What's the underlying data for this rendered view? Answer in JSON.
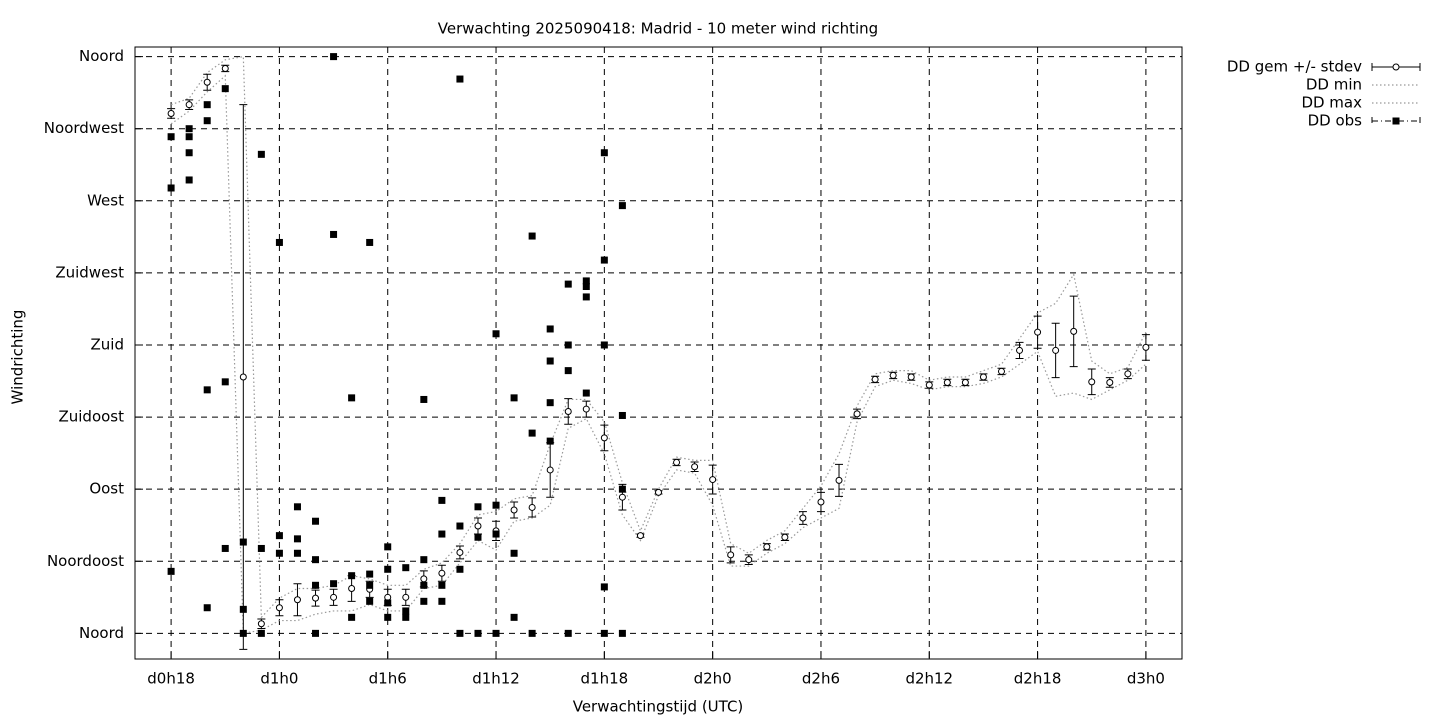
{
  "chart_data": {
    "type": "errorbar",
    "title": "Verwachting 2025090418: Madrid - 10 meter wind richting",
    "xlabel": "Verwachtingstijd (UTC)",
    "ylabel": "Windrichting",
    "xlim": [
      16,
      74
    ],
    "xticks": [
      {
        "value": 18,
        "label": "d0h18"
      },
      {
        "value": 24,
        "label": "d1h0"
      },
      {
        "value": 30,
        "label": "d1h6"
      },
      {
        "value": 36,
        "label": "d1h12"
      },
      {
        "value": 42,
        "label": "d1h18"
      },
      {
        "value": 48,
        "label": "d2h0"
      },
      {
        "value": 54,
        "label": "d2h6"
      },
      {
        "value": 60,
        "label": "d2h12"
      },
      {
        "value": 66,
        "label": "d2h18"
      },
      {
        "value": 72,
        "label": "d3h0"
      }
    ],
    "ylim": [
      -16,
      366
    ],
    "yticks": [
      {
        "value": 0,
        "label": "Noord"
      },
      {
        "value": 45,
        "label": "Noordoost"
      },
      {
        "value": 90,
        "label": "Oost"
      },
      {
        "value": 135,
        "label": "Zuidoost"
      },
      {
        "value": 180,
        "label": "Zuid"
      },
      {
        "value": 225,
        "label": "Zuidwest"
      },
      {
        "value": 270,
        "label": "West"
      },
      {
        "value": 315,
        "label": "Noordwest"
      },
      {
        "value": 360,
        "label": "Noord"
      }
    ],
    "grid": true,
    "legend": "outside-right",
    "x": [
      18,
      19,
      20,
      21,
      22,
      23,
      24,
      25,
      26,
      27,
      28,
      29,
      30,
      31,
      32,
      33,
      34,
      35,
      36,
      37,
      38,
      39,
      40,
      41,
      42,
      43,
      44,
      45,
      46,
      47,
      48,
      49,
      50,
      51,
      52,
      53,
      54,
      55,
      56,
      57,
      58,
      59,
      60,
      61,
      62,
      63,
      64,
      65,
      66,
      67,
      68,
      69,
      70,
      71,
      72
    ],
    "series": [
      {
        "name": "DD gem +/- stdev",
        "kind": "errorbar",
        "color": "#000000",
        "values": [
          324.5,
          330,
          344,
          352.6,
          160,
          6,
          16,
          21,
          22,
          22.5,
          28,
          27.5,
          22.5,
          22.5,
          34,
          37.5,
          50.5,
          67,
          64,
          77,
          78.6,
          102,
          138.5,
          140,
          122,
          85,
          61,
          88,
          106.7,
          104,
          96,
          49,
          46,
          54,
          60,
          72,
          82,
          95.5,
          137,
          158.5,
          161,
          160,
          155,
          156.6,
          156.6,
          160,
          163.5,
          176.6,
          188,
          176.6,
          188.5,
          157,
          156.6,
          162,
          178.5
        ],
        "errors": [
          3,
          3,
          5,
          2,
          170,
          3,
          5,
          10,
          5,
          5,
          8,
          5,
          5,
          5,
          5,
          5,
          4,
          5,
          6,
          5,
          6,
          17,
          8,
          5,
          8,
          8,
          1,
          1,
          2,
          3,
          9,
          5,
          3,
          2,
          2,
          4,
          6,
          10,
          3,
          2,
          2,
          2,
          2,
          2,
          2,
          2,
          2,
          5,
          10,
          17,
          22,
          8,
          3,
          3,
          8
        ]
      },
      {
        "name": "DD min",
        "kind": "dotted",
        "color": "#999999",
        "values": [
          318,
          326,
          338,
          348,
          0,
          2,
          8,
          8,
          12,
          14,
          14,
          18,
          14,
          14,
          28,
          30,
          44,
          58,
          52,
          70,
          72,
          80,
          128,
          134,
          112,
          74,
          58,
          86,
          102,
          100,
          80,
          42,
          42,
          50,
          56,
          66,
          72,
          78,
          132,
          154,
          158,
          156,
          152,
          154,
          154,
          156,
          160,
          168,
          176,
          148,
          150,
          146,
          152,
          158,
          168
        ]
      },
      {
        "name": "DD max",
        "kind": "dotted",
        "color": "#999999",
        "values": [
          330,
          334,
          350,
          358,
          360,
          10,
          22,
          28,
          28,
          30,
          36,
          34,
          30,
          30,
          40,
          44,
          56,
          74,
          76,
          84,
          86,
          118,
          146,
          146,
          132,
          94,
          64,
          90,
          110,
          108,
          108,
          56,
          50,
          58,
          64,
          78,
          92,
          112,
          142,
          162,
          164,
          164,
          158,
          160,
          160,
          164,
          168,
          184,
          200,
          206,
          224,
          170,
          162,
          166,
          188
        ]
      },
      {
        "name": "DD obs",
        "kind": "points",
        "color": "#000000",
        "x": [
          18,
          18,
          18,
          19,
          19,
          19,
          19,
          20,
          20,
          20,
          20,
          21,
          21,
          21,
          22,
          22,
          22,
          23,
          23,
          23,
          24,
          24,
          24,
          25,
          25,
          25,
          26,
          26,
          26,
          26,
          27,
          27,
          27,
          28,
          28,
          28,
          29,
          29,
          29,
          29,
          30,
          30,
          30,
          30,
          31,
          31,
          31,
          32,
          32,
          32,
          32,
          33,
          33,
          33,
          33,
          34,
          34,
          34,
          34,
          35,
          35,
          35,
          36,
          36,
          36,
          36,
          37,
          37,
          37,
          38,
          38,
          38,
          39,
          39,
          39,
          39,
          40,
          40,
          40,
          40,
          41,
          41,
          41,
          41,
          42,
          42,
          42,
          42,
          42,
          43,
          43,
          43,
          43
        ],
        "values": [
          38.7,
          278,
          310,
          283,
          300,
          310,
          315,
          16,
          152,
          320,
          330,
          53,
          157,
          340,
          0,
          15,
          57,
          0,
          53,
          299,
          50,
          61,
          244,
          50,
          59,
          79,
          0,
          30,
          46,
          70,
          31,
          249,
          360,
          10,
          36,
          147,
          20,
          30,
          37,
          244,
          10,
          19,
          40,
          54,
          10,
          14,
          41,
          20,
          30,
          46,
          146,
          20,
          30,
          62,
          83,
          0,
          40,
          67,
          346,
          0,
          60,
          79,
          0,
          62,
          80,
          187,
          10,
          50,
          147,
          0,
          125,
          248,
          120,
          144,
          170,
          190,
          0,
          164,
          180,
          218,
          150,
          210,
          216.5,
          220,
          0,
          29,
          180,
          233,
          300,
          0,
          90,
          136,
          267
        ]
      }
    ]
  }
}
